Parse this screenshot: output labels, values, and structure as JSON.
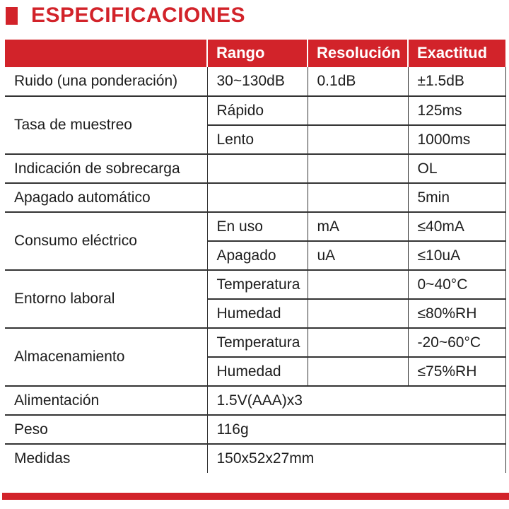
{
  "title": "ESPECIFICACIONES",
  "colors": {
    "accent_red": "#d2232a",
    "header_text": "#ffffff",
    "body_text": "#1c1c1c",
    "border": "#333333"
  },
  "table": {
    "headers": [
      "",
      "Rango",
      "Resolución",
      "Exactitud"
    ],
    "ruido": {
      "label": "Ruido (una ponderación)",
      "rango": "30~130dB",
      "resolucion": "0.1dB",
      "exactitud": "±1.5dB"
    },
    "tasa": {
      "label": "Tasa de muestreo",
      "rapido": {
        "rango": "Rápido",
        "resolucion": "",
        "exactitud": "125ms"
      },
      "lento": {
        "rango": "Lento",
        "resolucion": "",
        "exactitud": "1000ms"
      }
    },
    "sobrecarga": {
      "label": "Indicación de sobrecarga",
      "rango": "",
      "resolucion": "",
      "exactitud": "OL"
    },
    "apagado_automatico": {
      "label": "Apagado automático",
      "rango": "",
      "resolucion": "",
      "exactitud": "5min"
    },
    "consumo": {
      "label": "Consumo eléctrico",
      "en_uso": {
        "rango": "En uso",
        "resolucion": "mA",
        "exactitud": "≤40mA"
      },
      "apagado": {
        "rango": "Apagado",
        "resolucion": "uA",
        "exactitud": "≤10uA"
      }
    },
    "entorno": {
      "label": "Entorno laboral",
      "temperatura": {
        "rango": "Temperatura",
        "resolucion": "",
        "exactitud": "0~40°C"
      },
      "humedad": {
        "rango": "Humedad",
        "resolucion": "",
        "exactitud": "≤80%RH"
      }
    },
    "almacenamiento": {
      "label": "Almacenamiento",
      "temperatura": {
        "rango": "Temperatura",
        "resolucion": "",
        "exactitud": "-20~60°C"
      },
      "humedad": {
        "rango": "Humedad",
        "resolucion": "",
        "exactitud": "≤75%RH"
      }
    },
    "alimentacion": {
      "label": "Alimentación",
      "valor": "1.5V(AAA)x3"
    },
    "peso": {
      "label": "Peso",
      "valor": "116g"
    },
    "medidas": {
      "label": "Medidas",
      "valor": "150x52x27mm"
    }
  }
}
